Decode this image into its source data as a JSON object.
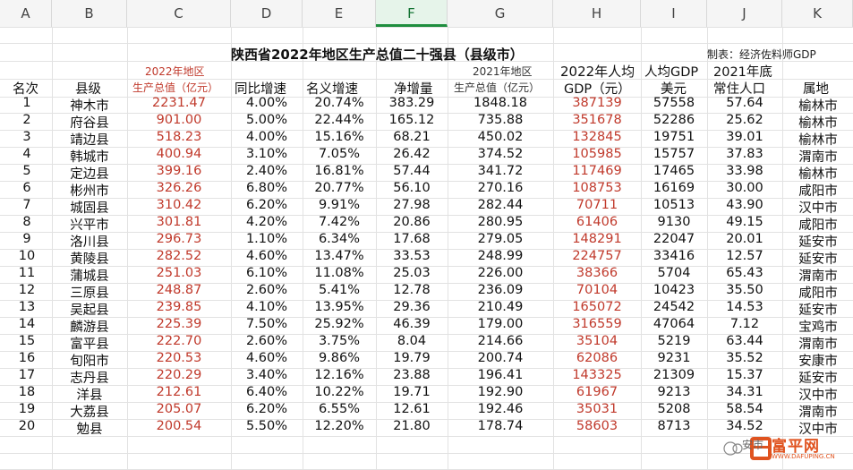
{
  "columns": [
    "A",
    "B",
    "C",
    "D",
    "E",
    "F",
    "G",
    "H",
    "I",
    "J",
    "K"
  ],
  "title": "陕西省2022年地区生产总值二十强县（县级市）",
  "note": "制表：经济佐料师GDP",
  "headers": {
    "c_top": "2022年地区",
    "c_bottom": "生产总值（亿元）",
    "g_top": "2021年地区",
    "g_bottom": "生产总值（亿元）",
    "h_top": "2022年人均",
    "h_bottom": "GDP（元）",
    "i_top": "人均GDP",
    "i_bottom": "美元",
    "j_top": "2021年底",
    "j_bottom": "常住人口",
    "rank": "名次",
    "county": "县级",
    "yoy": "同比增速",
    "nominal": "名义增速",
    "net": "净增量",
    "region": "属地"
  },
  "rows": [
    [
      "1",
      "神木市",
      "2231.47",
      "4.00%",
      "20.74%",
      "383.29",
      "1848.18",
      "387139",
      "57558",
      "57.64",
      "榆林市"
    ],
    [
      "2",
      "府谷县",
      "901.00",
      "5.00%",
      "22.44%",
      "165.12",
      "735.88",
      "351678",
      "52286",
      "25.62",
      "榆林市"
    ],
    [
      "3",
      "靖边县",
      "518.23",
      "4.00%",
      "15.16%",
      "68.21",
      "450.02",
      "132845",
      "19751",
      "39.01",
      "榆林市"
    ],
    [
      "4",
      "韩城市",
      "400.94",
      "3.10%",
      "7.05%",
      "26.42",
      "374.52",
      "105985",
      "15757",
      "37.83",
      "渭南市"
    ],
    [
      "5",
      "定边县",
      "399.16",
      "2.40%",
      "16.81%",
      "57.44",
      "341.72",
      "117469",
      "17465",
      "33.98",
      "榆林市"
    ],
    [
      "6",
      "彬州市",
      "326.26",
      "6.80%",
      "20.77%",
      "56.10",
      "270.16",
      "108753",
      "16169",
      "30.00",
      "咸阳市"
    ],
    [
      "7",
      "城固县",
      "310.42",
      "6.20%",
      "9.91%",
      "27.98",
      "282.44",
      "70711",
      "10513",
      "43.90",
      "汉中市"
    ],
    [
      "8",
      "兴平市",
      "301.81",
      "4.20%",
      "7.42%",
      "20.86",
      "280.95",
      "61406",
      "9130",
      "49.15",
      "咸阳市"
    ],
    [
      "9",
      "洛川县",
      "296.73",
      "1.10%",
      "6.34%",
      "17.68",
      "279.05",
      "148291",
      "22047",
      "20.01",
      "延安市"
    ],
    [
      "10",
      "黄陵县",
      "282.52",
      "4.60%",
      "13.47%",
      "33.53",
      "248.99",
      "224757",
      "33416",
      "12.57",
      "延安市"
    ],
    [
      "11",
      "蒲城县",
      "251.03",
      "6.10%",
      "11.08%",
      "25.03",
      "226.00",
      "38366",
      "5704",
      "65.43",
      "渭南市"
    ],
    [
      "12",
      "三原县",
      "248.87",
      "2.60%",
      "5.41%",
      "12.78",
      "236.09",
      "70104",
      "10423",
      "35.50",
      "咸阳市"
    ],
    [
      "13",
      "吴起县",
      "239.85",
      "4.10%",
      "13.95%",
      "29.36",
      "210.49",
      "165072",
      "24542",
      "14.53",
      "延安市"
    ],
    [
      "14",
      "麟游县",
      "225.39",
      "7.50%",
      "25.92%",
      "46.39",
      "179.00",
      "316559",
      "47064",
      "7.12",
      "宝鸡市"
    ],
    [
      "15",
      "富平县",
      "222.70",
      "2.60%",
      "3.75%",
      "8.04",
      "214.66",
      "35104",
      "5219",
      "63.44",
      "渭南市"
    ],
    [
      "16",
      "旬阳市",
      "220.53",
      "4.60%",
      "9.86%",
      "19.79",
      "200.74",
      "62086",
      "9231",
      "35.52",
      "安康市"
    ],
    [
      "17",
      "志丹县",
      "220.29",
      "3.40%",
      "12.16%",
      "23.88",
      "196.41",
      "143325",
      "21309",
      "15.37",
      "延安市"
    ],
    [
      "18",
      "洋县",
      "212.61",
      "6.40%",
      "10.22%",
      "19.71",
      "192.90",
      "61967",
      "9213",
      "34.31",
      "汉中市"
    ],
    [
      "19",
      "大荔县",
      "205.07",
      "6.20%",
      "6.55%",
      "12.61",
      "192.46",
      "35031",
      "5208",
      "58.54",
      "渭南市"
    ],
    [
      "20",
      "勉县",
      "200.54",
      "5.50%",
      "12.20%",
      "21.80",
      "178.74",
      "58603",
      "8713",
      "34.52",
      "汉中市"
    ]
  ],
  "watermark": {
    "cn": "富平网",
    "url": "WWW.DAFUPING.CN",
    "wx": "安市"
  }
}
